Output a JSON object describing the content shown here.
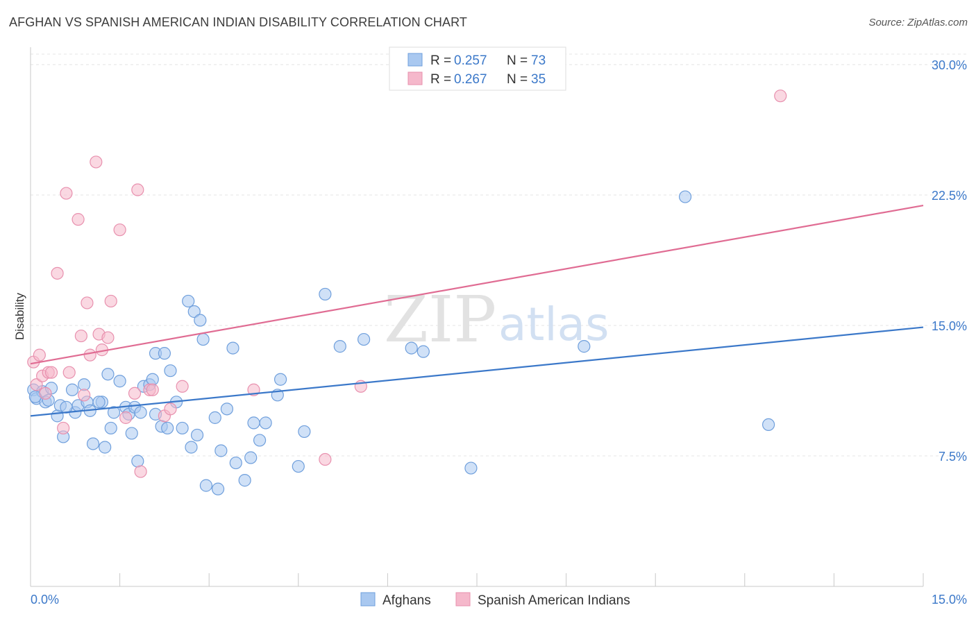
{
  "title": "AFGHAN VS SPANISH AMERICAN INDIAN DISABILITY CORRELATION CHART",
  "source": "Source: ZipAtlas.com",
  "watermark": {
    "zip": "ZIP",
    "atlas": "atlas"
  },
  "colors": {
    "blue": "#3b78c9",
    "blue_fill": "#a9c8f0",
    "pink": "#e06c93",
    "pink_fill": "#f5b8cb",
    "grid": "#e4e4e4",
    "axis": "#c8c8c8"
  },
  "legend": {
    "rows": [
      {
        "r_label": "R = ",
        "r_value": "0.257",
        "n_label": "N = ",
        "n_value": "73"
      },
      {
        "r_label": "R = ",
        "r_value": "0.267",
        "n_label": "N = ",
        "n_value": "35"
      }
    ]
  },
  "bottom_legend": [
    "Afghans",
    "Spanish American Indians"
  ],
  "chart_data": {
    "type": "scatter",
    "ylabel": "Disability",
    "xlabel": "",
    "xlim": [
      0,
      15
    ],
    "ylim": [
      0,
      31
    ],
    "x_tick_labels": [
      "0.0%",
      "15.0%"
    ],
    "y_ticks": [
      7.5,
      15.0,
      22.5,
      30.0
    ],
    "y_tick_labels": [
      "7.5%",
      "15.0%",
      "22.5%",
      "30.0%"
    ],
    "series": [
      {
        "name": "Afghans",
        "r": 0.257,
        "n": 73,
        "trend": {
          "x": [
            0,
            15
          ],
          "y": [
            9.8,
            14.9
          ]
        },
        "points": [
          [
            0.05,
            11.3
          ],
          [
            0.1,
            10.8
          ],
          [
            0.2,
            11.2
          ],
          [
            0.25,
            10.6
          ],
          [
            0.3,
            10.7
          ],
          [
            0.35,
            11.4
          ],
          [
            0.45,
            9.8
          ],
          [
            0.5,
            10.4
          ],
          [
            0.55,
            8.6
          ],
          [
            0.7,
            11.3
          ],
          [
            0.75,
            10.0
          ],
          [
            0.8,
            10.4
          ],
          [
            0.9,
            11.6
          ],
          [
            0.95,
            10.6
          ],
          [
            1.0,
            10.1
          ],
          [
            1.05,
            8.2
          ],
          [
            1.2,
            10.6
          ],
          [
            1.25,
            8.0
          ],
          [
            1.3,
            12.2
          ],
          [
            1.35,
            9.1
          ],
          [
            1.4,
            10.0
          ],
          [
            1.5,
            11.8
          ],
          [
            1.6,
            10.3
          ],
          [
            1.65,
            9.9
          ],
          [
            1.7,
            8.8
          ],
          [
            1.75,
            10.3
          ],
          [
            1.8,
            7.2
          ],
          [
            1.85,
            10.0
          ],
          [
            1.9,
            11.5
          ],
          [
            2.0,
            11.6
          ],
          [
            2.05,
            11.9
          ],
          [
            2.1,
            13.4
          ],
          [
            2.2,
            9.2
          ],
          [
            2.25,
            13.4
          ],
          [
            2.3,
            9.1
          ],
          [
            2.35,
            12.4
          ],
          [
            2.45,
            10.6
          ],
          [
            2.55,
            9.1
          ],
          [
            2.65,
            16.4
          ],
          [
            2.7,
            8.0
          ],
          [
            2.75,
            15.8
          ],
          [
            2.8,
            8.7
          ],
          [
            2.85,
            15.3
          ],
          [
            2.9,
            14.2
          ],
          [
            2.95,
            5.8
          ],
          [
            3.1,
            9.7
          ],
          [
            3.15,
            5.6
          ],
          [
            3.2,
            7.8
          ],
          [
            3.3,
            10.2
          ],
          [
            3.4,
            13.7
          ],
          [
            3.45,
            7.1
          ],
          [
            3.6,
            6.1
          ],
          [
            3.7,
            7.4
          ],
          [
            3.75,
            9.4
          ],
          [
            3.85,
            8.4
          ],
          [
            3.95,
            9.4
          ],
          [
            4.15,
            11.0
          ],
          [
            4.2,
            11.9
          ],
          [
            4.5,
            6.9
          ],
          [
            4.6,
            8.9
          ],
          [
            4.95,
            16.8
          ],
          [
            5.2,
            13.8
          ],
          [
            5.6,
            14.2
          ],
          [
            6.4,
            13.7
          ],
          [
            6.6,
            13.5
          ],
          [
            7.4,
            6.8
          ],
          [
            9.3,
            13.8
          ],
          [
            11.0,
            22.4
          ],
          [
            12.4,
            9.3
          ],
          [
            0.08,
            10.9
          ],
          [
            0.6,
            10.3
          ],
          [
            1.15,
            10.6
          ],
          [
            2.1,
            9.9
          ]
        ]
      },
      {
        "name": "Spanish American Indians",
        "r": 0.267,
        "n": 35,
        "trend": {
          "x": [
            0,
            15
          ],
          "y": [
            12.8,
            21.9
          ]
        },
        "points": [
          [
            0.05,
            12.9
          ],
          [
            0.1,
            11.6
          ],
          [
            0.15,
            13.3
          ],
          [
            0.2,
            12.1
          ],
          [
            0.25,
            11.1
          ],
          [
            0.3,
            12.3
          ],
          [
            0.35,
            12.3
          ],
          [
            0.45,
            18.0
          ],
          [
            0.55,
            9.1
          ],
          [
            0.6,
            22.6
          ],
          [
            0.65,
            12.3
          ],
          [
            0.8,
            21.1
          ],
          [
            0.85,
            14.4
          ],
          [
            0.9,
            11.0
          ],
          [
            0.95,
            16.3
          ],
          [
            1.0,
            13.3
          ],
          [
            1.1,
            24.4
          ],
          [
            1.15,
            14.5
          ],
          [
            1.2,
            13.6
          ],
          [
            1.3,
            14.3
          ],
          [
            1.35,
            16.4
          ],
          [
            1.5,
            20.5
          ],
          [
            1.6,
            9.7
          ],
          [
            1.75,
            11.1
          ],
          [
            1.8,
            22.8
          ],
          [
            1.85,
            6.6
          ],
          [
            2.0,
            11.3
          ],
          [
            2.05,
            11.3
          ],
          [
            2.25,
            9.8
          ],
          [
            2.35,
            10.2
          ],
          [
            2.55,
            11.5
          ],
          [
            3.75,
            11.3
          ],
          [
            4.95,
            7.3
          ],
          [
            5.55,
            11.5
          ],
          [
            12.6,
            28.2
          ]
        ]
      }
    ]
  }
}
